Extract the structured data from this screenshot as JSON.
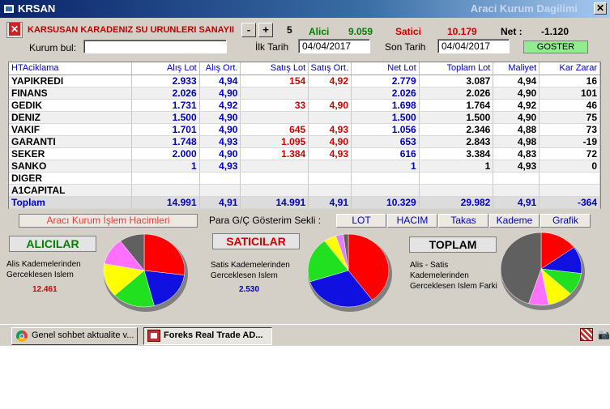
{
  "window": {
    "title": "KRSAN",
    "right_title": "Araci Kurum Dagilimi",
    "close_label": "✕"
  },
  "header": {
    "stock_name": "KARSUSAN KARADENIZ SU URUNLERI SANAYII",
    "minus_label": "-",
    "plus_label": "+",
    "step_value": "5",
    "alici_label": "Alici",
    "alici_value": "9.059",
    "satici_label": "Satici",
    "satici_value": "10.179",
    "net_label": "Net :",
    "net_value": "-1.120",
    "kurum_bul_label": "Kurum bul:",
    "kurum_bul_value": "",
    "ilk_tarih_label": "İlk Tarih",
    "ilk_tarih_value": "04/04/2017",
    "son_tarih_label": "Son Tarih",
    "son_tarih_value": "04/04/2017",
    "goster_label": "GOSTER"
  },
  "table": {
    "columns": [
      "HTAciklama",
      "Alış Lot",
      "Alış Ort.",
      "Satış Lot",
      "Satış Ort.",
      "Net Lot",
      "Toplam Lot",
      "Maliyet",
      "Kar Zarar"
    ],
    "rows": [
      [
        "YAPIKREDI",
        "2.933",
        "4,94",
        "154",
        "4,92",
        "2.779",
        "3.087",
        "4,94",
        "16"
      ],
      [
        "FINANS",
        "2.026",
        "4,90",
        "",
        "",
        "2.026",
        "2.026",
        "4,90",
        "101"
      ],
      [
        "GEDIK",
        "1.731",
        "4,92",
        "33",
        "4,90",
        "1.698",
        "1.764",
        "4,92",
        "46"
      ],
      [
        "DENIZ",
        "1.500",
        "4,90",
        "",
        "",
        "1.500",
        "1.500",
        "4,90",
        "75"
      ],
      [
        "VAKIF",
        "1.701",
        "4,90",
        "645",
        "4,93",
        "1.056",
        "2.346",
        "4,88",
        "73"
      ],
      [
        "GARANTI",
        "1.748",
        "4,93",
        "1.095",
        "4,90",
        "653",
        "2.843",
        "4,98",
        "-19"
      ],
      [
        "SEKER",
        "2.000",
        "4,90",
        "1.384",
        "4,93",
        "616",
        "3.384",
        "4,83",
        "72"
      ],
      [
        "SANKO",
        "1",
        "4,93",
        "",
        "",
        "1",
        "1",
        "4,93",
        "0"
      ],
      [
        "DIGER",
        "",
        "",
        "",
        "",
        "",
        "",
        "",
        ""
      ],
      [
        "A1CAPITAL",
        "",
        "",
        "",
        "",
        "",
        "",
        "",
        ""
      ]
    ],
    "total": [
      "Toplam",
      "14.991",
      "4,91",
      "14.991",
      "4,91",
      "10.329",
      "29.982",
      "4,91",
      "-364"
    ]
  },
  "bottom": {
    "hacim_label": "Aracı Kurum İşlem Hacimleri",
    "paragc_label": "Para G/Ç Gösterim Sekli :",
    "tabs": [
      "LOT",
      "HACIM",
      "Takas",
      "Kademe",
      "Grafik"
    ],
    "alicilar_label": "ALICILAR",
    "alicilar_desc": "Alis Kademelerinden Gerceklesen Islem",
    "alicilar_value": "12.461",
    "saticilar_label": "SATICILAR",
    "saticilar_desc": "Satis Kademelerinden Gerceklesen Islem",
    "saticilar_value": "2.530",
    "toplam_label": "TOPLAM",
    "toplam_desc": "Alis - Satis Kademelerinden Gerceklesen Islem Farki"
  },
  "colors": {
    "red": "#ff0000",
    "blue": "#1010e0",
    "green": "#20e020",
    "yellow": "#ffff00",
    "pink": "#ff70ff",
    "gray": "#606060",
    "orchid": "#e080ff"
  },
  "pies": {
    "alicilar": [
      {
        "color": "red",
        "value": 27
      },
      {
        "color": "blue",
        "value": 19
      },
      {
        "color": "green",
        "value": 17
      },
      {
        "color": "yellow",
        "value": 15
      },
      {
        "color": "pink",
        "value": 12
      },
      {
        "color": "gray",
        "value": 10
      }
    ],
    "saticilar": [
      {
        "color": "red",
        "value": 40
      },
      {
        "color": "blue",
        "value": 30
      },
      {
        "color": "green",
        "value": 20
      },
      {
        "color": "yellow",
        "value": 5
      },
      {
        "color": "orchid",
        "value": 3
      },
      {
        "color": "gray",
        "value": 2
      }
    ],
    "toplam": [
      {
        "color": "red",
        "value": 15
      },
      {
        "color": "blue",
        "value": 12
      },
      {
        "color": "green",
        "value": 10
      },
      {
        "color": "yellow",
        "value": 10
      },
      {
        "color": "pink",
        "value": 8
      },
      {
        "color": "gray",
        "value": 45
      }
    ]
  },
  "taskbar": {
    "items": [
      {
        "label": "Genel sohbet aktualite v...",
        "icon": "chrome-icon"
      },
      {
        "label": "Foreks Real Trade AD...",
        "icon": "foreks-icon"
      }
    ],
    "tray_icons": [
      "foreks-tray-icon",
      "camera-icon"
    ]
  }
}
